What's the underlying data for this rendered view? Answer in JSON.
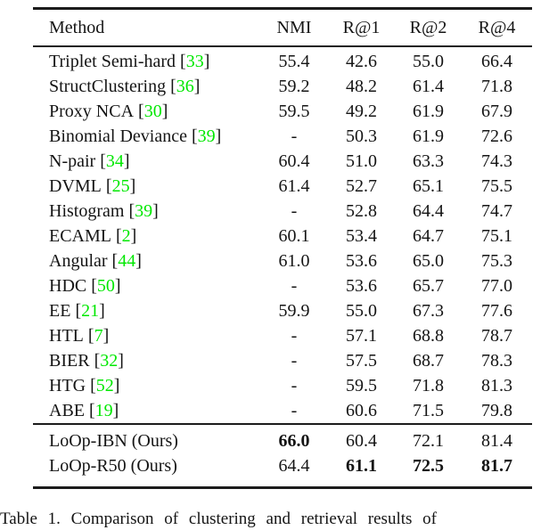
{
  "page": {
    "caption": "Table 1. Comparison of clustering and retrieval results of"
  },
  "colors": {
    "citation_green": "#00e800",
    "text": "#141414",
    "rule": "#1c1c1c",
    "background": "#ffffff"
  },
  "table": {
    "bracket_open": "[",
    "bracket_close": "]",
    "header": {
      "method": "Method",
      "nmi": "NMI",
      "r1": "R@1",
      "r2": "R@2",
      "r4": "R@4"
    },
    "rows": [
      {
        "method": "Triplet Semi-hard",
        "cite": "33",
        "nmi": "55.4",
        "r1": "42.6",
        "r2": "55.0",
        "r4": "66.4"
      },
      {
        "method": "StructClustering",
        "cite": "36",
        "nmi": "59.2",
        "r1": "48.2",
        "r2": "61.4",
        "r4": "71.8"
      },
      {
        "method": "Proxy NCA",
        "cite": "30",
        "nmi": "59.5",
        "r1": "49.2",
        "r2": "61.9",
        "r4": "67.9"
      },
      {
        "method": "Binomial Deviance",
        "cite": "39",
        "nmi": "-",
        "r1": "50.3",
        "r2": "61.9",
        "r4": "72.6"
      },
      {
        "method": "N-pair",
        "cite": "34",
        "nmi": "60.4",
        "r1": "51.0",
        "r2": "63.3",
        "r4": "74.3"
      },
      {
        "method": "DVML",
        "cite": "25",
        "nmi": "61.4",
        "r1": "52.7",
        "r2": "65.1",
        "r4": "75.5"
      },
      {
        "method": "Histogram",
        "cite": "39",
        "nmi": "-",
        "r1": "52.8",
        "r2": "64.4",
        "r4": "74.7"
      },
      {
        "method": "ECAML",
        "cite": "2",
        "nmi": "60.1",
        "r1": "53.4",
        "r2": "64.7",
        "r4": "75.1"
      },
      {
        "method": "Angular",
        "cite": "44",
        "nmi": "61.0",
        "r1": "53.6",
        "r2": "65.0",
        "r4": "75.3"
      },
      {
        "method": "HDC",
        "cite": "50",
        "nmi": "-",
        "r1": "53.6",
        "r2": "65.7",
        "r4": "77.0"
      },
      {
        "method": "EE",
        "cite": "21",
        "nmi": "59.9",
        "r1": "55.0",
        "r2": "67.3",
        "r4": "77.6"
      },
      {
        "method": "HTL",
        "cite": "7",
        "nmi": "-",
        "r1": "57.1",
        "r2": "68.8",
        "r4": "78.7"
      },
      {
        "method": "BIER",
        "cite": "32",
        "nmi": "-",
        "r1": "57.5",
        "r2": "68.7",
        "r4": "78.3"
      },
      {
        "method": "HTG",
        "cite": "52",
        "nmi": "-",
        "r1": "59.5",
        "r2": "71.8",
        "r4": "81.3"
      },
      {
        "method": "ABE",
        "cite": "19",
        "nmi": "-",
        "r1": "60.6",
        "r2": "71.5",
        "r4": "79.8"
      }
    ],
    "ours": [
      {
        "method": "LoOp-IBN (Ours)",
        "nmi": "66.0",
        "r1": "60.4",
        "r2": "72.1",
        "r4": "81.4"
      },
      {
        "method": "LoOp-R50 (Ours)",
        "nmi": "64.4",
        "r1": "61.1",
        "r2": "72.5",
        "r4": "81.7"
      }
    ]
  }
}
